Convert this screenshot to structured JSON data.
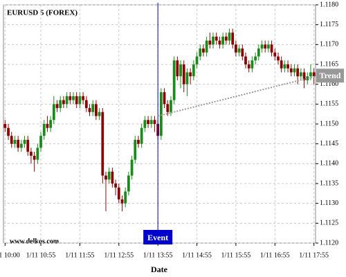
{
  "chart_data": {
    "type": "candlestick",
    "title": "EURUSD 5 (FOREX)",
    "watermark": "www.delkos.com",
    "x_label": "Date",
    "categories": [
      "1/11 10:00",
      null,
      null,
      null,
      null,
      null,
      null,
      null,
      null,
      null,
      null,
      "1/11 10:55",
      null,
      null,
      null,
      null,
      null,
      null,
      null,
      null,
      null,
      null,
      null,
      "1/11 11:55",
      null,
      null,
      null,
      null,
      null,
      null,
      null,
      null,
      null,
      null,
      null,
      "1/11 12:55",
      null,
      null,
      null,
      null,
      null,
      null,
      null,
      null,
      null,
      null,
      null,
      "1/11 13:55",
      null,
      null,
      null,
      null,
      null,
      null,
      null,
      null,
      null,
      null,
      null,
      "1/11 14:55",
      null,
      null,
      null,
      null,
      null,
      null,
      null,
      null,
      null,
      null,
      null,
      "1/11 15:55",
      null,
      null,
      null,
      null,
      null,
      null,
      null,
      null,
      null,
      null,
      null,
      "1/11 16:55",
      null,
      null,
      null,
      null,
      null,
      null,
      null,
      null,
      null,
      null,
      null,
      "1/11 17:55"
    ],
    "open": [
      1.115,
      1.1149,
      1.1147,
      1.1145,
      1.1146,
      1.1144,
      1.1145,
      1.1146,
      1.1143,
      1.1142,
      1.1141,
      1.1144,
      1.1147,
      1.115,
      1.1149,
      1.1151,
      1.1155,
      1.1154,
      1.1156,
      1.1155,
      1.1157,
      1.1156,
      1.1157,
      1.1155,
      1.1157,
      1.1156,
      1.1154,
      1.1153,
      1.1155,
      1.1152,
      1.1153,
      1.1137,
      1.1136,
      1.1138,
      1.1135,
      1.1134,
      1.1131,
      1.113,
      1.1133,
      1.1137,
      1.1141,
      1.1146,
      1.1145,
      1.1149,
      1.1151,
      1.115,
      1.1151,
      1.115,
      1.1147,
      1.1158,
      1.1155,
      1.1153,
      1.1156,
      1.1166,
      1.1162,
      1.1165,
      1.116,
      1.1163,
      1.1162,
      1.1165,
      1.1167,
      1.1169,
      1.1168,
      1.1171,
      1.117,
      1.1172,
      1.1171,
      1.117,
      1.1172,
      1.1171,
      1.1173,
      1.117,
      1.1168,
      1.1169,
      1.1167,
      1.1165,
      1.1164,
      1.1166,
      1.1167,
      1.1169,
      1.117,
      1.1169,
      1.117,
      1.1168,
      1.1167,
      1.1166,
      1.1164,
      1.1165,
      1.1164,
      1.1163,
      1.1164,
      1.1162,
      1.1163,
      1.1161,
      1.1162,
      1.1163
    ],
    "high": [
      1.1151,
      1.115,
      1.1148,
      1.1147,
      1.1147,
      1.1146,
      1.1147,
      1.1147,
      1.1144,
      1.1143,
      1.1145,
      1.1148,
      1.1151,
      1.1152,
      1.1152,
      1.1157,
      1.1156,
      1.1157,
      1.1157,
      1.1158,
      1.1158,
      1.1158,
      1.1158,
      1.1158,
      1.1158,
      1.1157,
      1.1155,
      1.1156,
      1.1156,
      1.1154,
      1.1154,
      1.1138,
      1.1139,
      1.1139,
      1.1136,
      1.1135,
      1.1132,
      1.1134,
      1.1138,
      1.1142,
      1.1147,
      1.1147,
      1.115,
      1.1152,
      1.1152,
      1.1152,
      1.1152,
      1.1151,
      1.1159,
      1.1159,
      1.1156,
      1.1157,
      1.1167,
      1.1167,
      1.1166,
      1.1166,
      1.1164,
      1.1164,
      1.1166,
      1.1168,
      1.117,
      1.117,
      1.1172,
      1.1173,
      1.1173,
      1.1173,
      1.1172,
      1.1173,
      1.1173,
      1.1174,
      1.1174,
      1.1171,
      1.117,
      1.117,
      1.1168,
      1.1166,
      1.1167,
      1.1168,
      1.117,
      1.1171,
      1.1171,
      1.1171,
      1.1171,
      1.1169,
      1.1168,
      1.1167,
      1.1166,
      1.1166,
      1.1165,
      1.1165,
      1.1165,
      1.1164,
      1.1164,
      1.1163,
      1.1165,
      1.1164
    ],
    "low": [
      1.1148,
      1.1146,
      1.1144,
      1.1144,
      1.1143,
      1.1143,
      1.1144,
      1.1142,
      1.114,
      1.1138,
      1.114,
      1.1143,
      1.1146,
      1.1148,
      1.1148,
      1.115,
      1.1153,
      1.1153,
      1.1154,
      1.1154,
      1.1155,
      1.1155,
      1.1154,
      1.1154,
      1.1155,
      1.1153,
      1.1152,
      1.1152,
      1.1151,
      1.1151,
      1.1135,
      1.1128,
      1.1135,
      1.1134,
      1.1132,
      1.113,
      1.1128,
      1.1129,
      1.1132,
      1.1136,
      1.114,
      1.1144,
      1.1144,
      1.1148,
      1.1149,
      1.1149,
      1.1148,
      1.1146,
      1.1146,
      1.1154,
      1.1152,
      1.1152,
      1.1155,
      1.1161,
      1.1159,
      1.1158,
      1.1157,
      1.116,
      1.1161,
      1.1164,
      1.1166,
      1.1167,
      1.1167,
      1.1169,
      1.1169,
      1.117,
      1.1169,
      1.1169,
      1.117,
      1.117,
      1.1169,
      1.1167,
      1.1167,
      1.1166,
      1.1164,
      1.1163,
      1.1163,
      1.1165,
      1.1166,
      1.1168,
      1.1168,
      1.1168,
      1.1167,
      1.1166,
      1.1165,
      1.1163,
      1.1163,
      1.1163,
      1.1162,
      1.1162,
      1.116,
      1.1161,
      1.1159,
      1.116,
      1.1161,
      1.116
    ],
    "close": [
      1.1149,
      1.1147,
      1.1145,
      1.1146,
      1.1144,
      1.1145,
      1.1146,
      1.1143,
      1.1142,
      1.1141,
      1.1144,
      1.1147,
      1.115,
      1.1149,
      1.1151,
      1.1155,
      1.1154,
      1.1156,
      1.1155,
      1.1157,
      1.1156,
      1.1157,
      1.1155,
      1.1157,
      1.1156,
      1.1154,
      1.1153,
      1.1155,
      1.1152,
      1.1153,
      1.1137,
      1.1136,
      1.1138,
      1.1135,
      1.1134,
      1.1131,
      1.113,
      1.1133,
      1.1137,
      1.1141,
      1.1146,
      1.1145,
      1.1149,
      1.1151,
      1.115,
      1.1151,
      1.115,
      1.1147,
      1.1158,
      1.1155,
      1.1153,
      1.1156,
      1.1166,
      1.1162,
      1.1165,
      1.116,
      1.1163,
      1.1162,
      1.1165,
      1.1167,
      1.1169,
      1.1168,
      1.1171,
      1.117,
      1.1172,
      1.1171,
      1.117,
      1.1172,
      1.1171,
      1.1173,
      1.117,
      1.1168,
      1.1169,
      1.1167,
      1.1165,
      1.1164,
      1.1166,
      1.1167,
      1.1169,
      1.117,
      1.1169,
      1.117,
      1.1168,
      1.1167,
      1.1166,
      1.1164,
      1.1165,
      1.1164,
      1.1163,
      1.1164,
      1.1162,
      1.1163,
      1.1161,
      1.1162,
      1.1163,
      1.1162
    ],
    "up_color": "#1a8a1a",
    "down_color": "#8b0000",
    "ylim": [
      1.112,
      1.118
    ],
    "yticks": [
      {
        "value": 1.112,
        "label": "1.1120"
      },
      1.1125,
      {
        "value": 1.113,
        "label": "1.1130"
      },
      1.1135,
      {
        "value": 1.114,
        "label": "1.1140"
      },
      1.1145,
      {
        "value": 1.115,
        "label": "1.1150"
      },
      1.1155,
      {
        "value": 1.116,
        "label": "1.1160"
      },
      1.1165,
      {
        "value": 1.117,
        "label": "1.1170"
      },
      1.1175,
      {
        "value": 1.118,
        "label": "1.1180"
      }
    ],
    "grid": true,
    "event": {
      "label": "Event",
      "category": "1/11 13:55",
      "color": "#0000cc"
    },
    "trend": {
      "label": "Trend",
      "from": 1.1152,
      "to": 1.1162,
      "color": "#999999"
    }
  }
}
